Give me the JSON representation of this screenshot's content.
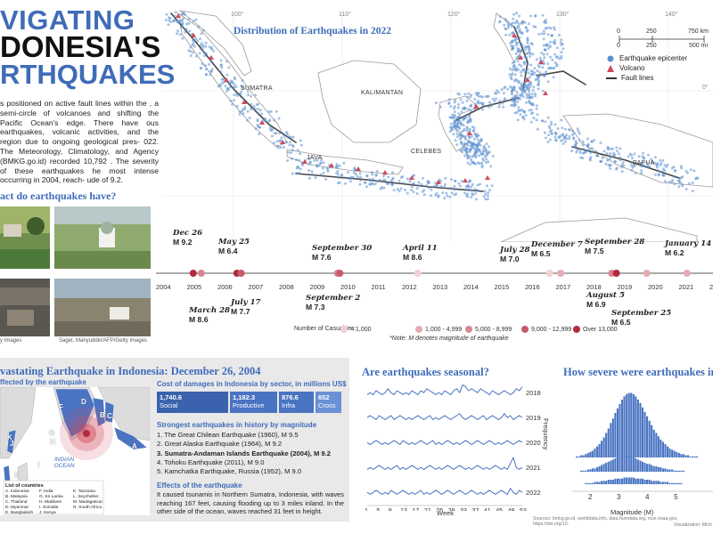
{
  "title": {
    "line1": "VIGATING",
    "line2": "DONESIA'S",
    "line3": "RTHQUAKES"
  },
  "intro": "s positioned on active fault lines within the , a semi-circle of volcanoes and shifting the Pacific Ocean's edge. There have ous earthquakes, volcanic activities, and the region due to ongoing geological pres- 022. The Meteorology, Climatology, and Agency (BMKG.go.id) recorded 10,792 . The severity of these earthquakes he most intense occurring in 2004, reach- ude of 9.2.",
  "impact_heading": "act do earthquakes have?",
  "photo_captions": {
    "left": "y Images",
    "right": "Saget, Mahyuddin/AFP/Getty Images"
  },
  "map": {
    "title": "Distribution of Earthquakes in 2022",
    "longitudes": [
      "100°",
      "110°",
      "120°",
      "130°",
      "140°"
    ],
    "latitudes": [
      "0°",
      "10°"
    ],
    "regions": [
      "SUMATRA",
      "KALIMANTAN",
      "JAVA",
      "CELEBES",
      "PAPUA"
    ],
    "scale": {
      "km_ticks": [
        "0",
        "250",
        "750 km"
      ],
      "mi_ticks": [
        "0",
        "250",
        "500 mi"
      ]
    },
    "legend": [
      "Earthquake epicenter",
      "Volcano",
      "Fault lines"
    ],
    "colors": {
      "epicenter": "#5b8fd0",
      "volcano": "#d04a5c",
      "fault": "#555555",
      "land": "#ffffff",
      "border": "#999999"
    }
  },
  "timeline": {
    "years": [
      "2004",
      "2005",
      "2006",
      "2007",
      "2008",
      "2009",
      "2010",
      "2011",
      "2012",
      "2013",
      "2014",
      "2015",
      "2016",
      "2017",
      "2018",
      "2019",
      "2020",
      "2021",
      "2022"
    ],
    "events_above": [
      {
        "date": "Dec 26",
        "mag": "M 9.2"
      },
      {
        "date": "May 25",
        "mag": "M 6.4"
      },
      {
        "date": "September 30",
        "mag": "M 7.6"
      },
      {
        "date": "April 11",
        "mag": "M 8.6"
      },
      {
        "date": "July 28",
        "mag": "M 7.0"
      },
      {
        "date": "December 7",
        "mag": "M 6.5"
      },
      {
        "date": "September 28",
        "mag": "M 7.5"
      },
      {
        "date": "January 14",
        "mag": "M 6.2"
      }
    ],
    "events_below": [
      {
        "date": "March 28",
        "mag": "M 8.6"
      },
      {
        "date": "July 17",
        "mag": "M 7.7"
      },
      {
        "date": "September 2",
        "mag": "M 7.3"
      },
      {
        "date": "August 5",
        "mag": "M 6.9"
      },
      {
        "date": "September 25",
        "mag": "M 6.5"
      }
    ],
    "casualty_legend": {
      "label": "Number of Casualties:",
      "bins": [
        "< 1,000",
        "1,000 - 4,999",
        "5,000 - 8,999",
        "9,000 - 12,999",
        "Over 13,000"
      ],
      "colors": [
        "#f1cfd3",
        "#e6aab2",
        "#d88592",
        "#c75a6c",
        "#b22a3e"
      ]
    },
    "note": "*Note: M denotes magnitude of earthquake"
  },
  "bottom": {
    "title": "vastating Earthquake in Indonesia: December 26, 2004",
    "affected": "ffected by the earthquake",
    "ocean_label": "INDIAN OCEAN",
    "map_letters": [
      "F",
      "D",
      "C",
      "B",
      "G",
      "A",
      "H",
      "I",
      "K",
      "J",
      "L",
      "E"
    ],
    "countries_heading": "List of countries",
    "countries": [
      "A. Indonesia",
      "B. Malaysia",
      "C. Thailand",
      "D. Myanmar",
      "E. Bangladesh",
      "F. India",
      "G. Sri Lanka",
      "H. Maldives",
      "I. Somalia",
      "J. Kenya",
      "K. Tanzania",
      "L. Seychelles",
      "M. Madagascar",
      "N. South Africa"
    ],
    "cost_heading": "Cost of damages in Indonesia by sector, in millions US$",
    "costs": [
      {
        "value": "1,740.6",
        "sector": "Social"
      },
      {
        "value": "1,182.3",
        "sector": "Productive"
      },
      {
        "value": "876.6",
        "sector": "Infra"
      },
      {
        "value": "652",
        "sector": "Cross"
      }
    ],
    "strongest_heading": "Strongest earthquakes in history by magnitude",
    "strongest": [
      "1. The Great Chilean Earthquake (1960), M 9.5",
      "2. Great Alaska Earthquake (1964), M 9.2",
      "3. Sumatra-Andaman Islands Earthquake (2004), M 9.2",
      "4. Tohoku Earthquake (2011), M 9.0",
      "5. Kamchatka Earthquake, Russia (1952), M 9.0"
    ],
    "effects_heading": "Effects of the earthquake",
    "effects": "It caused tsunamis in Northern Sumatra, Indonesia, with waves reaching 167 feet, causing flooding up to 3 miles inland. In the other side of the ocean, waves reached 31 feet in height."
  },
  "seasonal": {
    "title": "Are earthquakes seasonal?",
    "years": [
      "2018",
      "2019",
      "2020",
      "2021",
      "2022"
    ],
    "xticks": [
      "1",
      "5",
      "9",
      "13",
      "17",
      "21",
      "25",
      "29",
      "33",
      "37",
      "41",
      "45",
      "49",
      "53"
    ],
    "xlabel": "Week",
    "ylabel": "Frequency",
    "color": "#4a74c2"
  },
  "severity": {
    "title": "How severe were earthquakes in I",
    "xticks": [
      "2",
      "3",
      "4",
      "5"
    ],
    "xlabel": "Magnitude (M)",
    "color": "#4a74c2"
  },
  "sources": "Sources: bmkg.go.id, worlddata.info, data.humdata.org, ncei.noaa.gov, https://doi.org/10.",
  "credit": "Visualization: Mich",
  "chart_data": [
    {
      "type": "line",
      "title": "Are earthquakes seasonal?",
      "xlabel": "Week",
      "ylabel": "Frequency",
      "series": [
        {
          "name": "2018",
          "values": [
            3,
            4,
            3,
            5,
            4,
            3,
            4,
            6,
            4,
            3,
            5,
            4,
            3,
            4,
            3,
            5,
            4,
            3,
            5,
            4,
            6,
            5,
            4,
            3,
            4,
            3,
            5,
            4,
            3,
            5,
            6,
            4,
            8,
            7,
            5,
            6,
            5,
            4,
            6,
            5,
            4,
            3,
            5,
            4,
            3,
            4,
            5,
            4,
            3,
            4,
            6,
            5,
            7
          ]
        },
        {
          "name": "2019",
          "values": [
            4,
            5,
            4,
            3,
            5,
            4,
            3,
            4,
            5,
            3,
            4,
            5,
            4,
            3,
            4,
            3,
            4,
            5,
            4,
            3,
            4,
            5,
            3,
            4,
            3,
            4,
            5,
            4,
            3,
            4,
            5,
            6,
            4,
            3,
            4,
            5,
            4,
            3,
            4,
            5,
            3,
            4,
            5,
            4,
            3,
            4,
            6,
            4,
            5,
            3,
            4,
            5,
            4
          ]
        },
        {
          "name": "2020",
          "values": [
            4,
            3,
            4,
            5,
            4,
            3,
            4,
            3,
            4,
            5,
            4,
            3,
            5,
            4,
            3,
            4,
            3,
            4,
            5,
            4,
            3,
            4,
            5,
            3,
            4,
            3,
            4,
            5,
            4,
            3,
            4,
            3,
            4,
            5,
            4,
            3,
            4,
            5,
            4,
            3,
            4,
            5,
            4,
            3,
            4,
            3,
            4,
            5,
            4,
            3,
            4,
            5,
            4
          ]
        },
        {
          "name": "2021",
          "values": [
            3,
            4,
            3,
            4,
            5,
            4,
            3,
            4,
            3,
            4,
            5,
            3,
            4,
            3,
            4,
            5,
            4,
            3,
            4,
            3,
            4,
            5,
            4,
            3,
            4,
            3,
            4,
            5,
            4,
            3,
            4,
            5,
            4,
            3,
            4,
            3,
            4,
            5,
            4,
            3,
            4,
            3,
            4,
            5,
            4,
            3,
            4,
            3,
            6,
            9,
            4,
            3,
            4
          ]
        },
        {
          "name": "2022",
          "values": [
            4,
            3,
            4,
            5,
            4,
            3,
            4,
            3,
            5,
            4,
            3,
            4,
            5,
            4,
            3,
            4,
            3,
            4,
            5,
            3,
            4,
            3,
            4,
            5,
            4,
            3,
            4,
            5,
            4,
            3,
            4,
            5,
            4,
            3,
            4,
            5,
            4,
            3,
            4,
            3,
            4,
            5,
            4,
            3,
            4,
            5,
            4,
            3,
            6,
            4,
            3,
            5,
            4
          ]
        }
      ]
    },
    {
      "type": "bar",
      "title": "How severe were earthquakes in I",
      "xlabel": "Magnitude (M)",
      "xlim": [
        1.5,
        5.8
      ],
      "series": [
        {
          "name": "top",
          "values": [
            1,
            1,
            2,
            2,
            3,
            4,
            5,
            6,
            8,
            10,
            12,
            15,
            18,
            22,
            26,
            31,
            35,
            40,
            44,
            48,
            52,
            55,
            57,
            58,
            58,
            57,
            55,
            52,
            49,
            45,
            41,
            37,
            33,
            29,
            25,
            22,
            19,
            16,
            14,
            12,
            10,
            8,
            7,
            6,
            5,
            4,
            3,
            3,
            2,
            2,
            1,
            1,
            1,
            1
          ]
        },
        {
          "name": "mid",
          "values": [
            0,
            0,
            1,
            1,
            1,
            2,
            2,
            3,
            3,
            4,
            5,
            6,
            7,
            8,
            9,
            10,
            11,
            12,
            13,
            13,
            14,
            14,
            14,
            14,
            13,
            13,
            12,
            11,
            10,
            9,
            8,
            7,
            7,
            6,
            5,
            5,
            4,
            4,
            3,
            3,
            2,
            2,
            2,
            1,
            1,
            1,
            1,
            1,
            0,
            0,
            0,
            0,
            0,
            0
          ]
        },
        {
          "name": "bottom",
          "values": [
            0,
            0,
            0,
            0,
            1,
            1,
            1,
            1,
            2,
            2,
            2,
            3,
            3,
            3,
            4,
            4,
            4,
            5,
            5,
            5,
            5,
            6,
            6,
            6,
            6,
            6,
            5,
            5,
            5,
            5,
            4,
            4,
            4,
            3,
            3,
            3,
            3,
            2,
            2,
            2,
            2,
            1,
            1,
            1,
            1,
            1,
            1,
            0,
            0,
            0,
            0,
            0,
            0,
            0
          ]
        }
      ]
    }
  ]
}
